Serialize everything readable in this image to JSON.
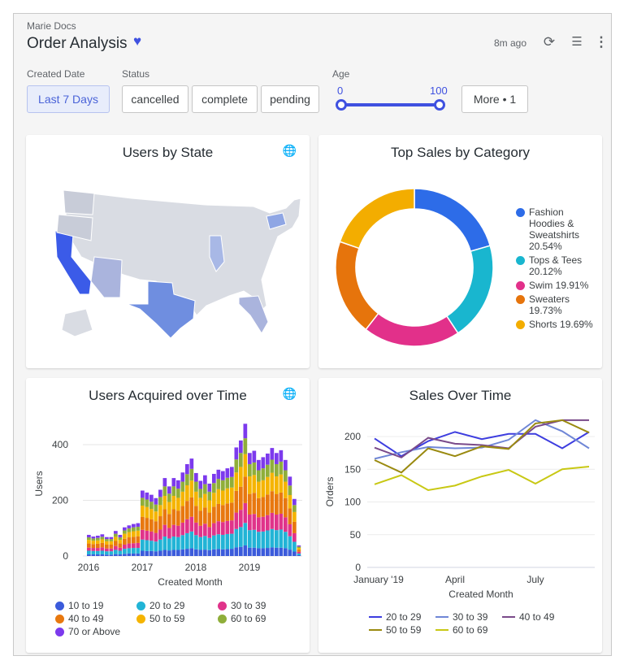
{
  "header": {
    "breadcrumb": "Marie Docs",
    "title": "Order Analysis",
    "updated": "8m ago",
    "favorite_icon": "heart-icon",
    "colors": {
      "accent": "#3f51e0"
    }
  },
  "filters": {
    "created_date": {
      "label": "Created Date",
      "value": "Last 7 Days"
    },
    "status": {
      "label": "Status",
      "options": [
        "cancelled",
        "complete",
        "pending"
      ]
    },
    "age": {
      "label": "Age",
      "min": "0",
      "max": "100"
    },
    "more": "More • 1"
  },
  "cards": {
    "map": {
      "title": "Users by State"
    },
    "donut": {
      "title": "Top Sales by Category"
    },
    "bars": {
      "title": "Users Acquired over Time"
    },
    "lines": {
      "title": "Sales Over Time"
    }
  },
  "chart_data": [
    {
      "type": "pie",
      "title": "Top Sales by Category",
      "donut": true,
      "legend": "right",
      "slices": [
        {
          "label": "Fashion Hoodies & Sweatshirts",
          "value": 20.54,
          "text": "Fashion Hoodies & Sweatshirts 20.54%",
          "color": "#2d6ce8"
        },
        {
          "label": "Tops & Tees",
          "value": 20.12,
          "text": "Tops & Tees 20.12%",
          "color": "#19b6cf"
        },
        {
          "label": "Swim",
          "value": 19.91,
          "text": "Swim 19.91%",
          "color": "#e2308a"
        },
        {
          "label": "Sweaters",
          "value": 19.73,
          "text": "Sweaters 19.73%",
          "color": "#e6740c"
        },
        {
          "label": "Shorts",
          "value": 19.69,
          "text": "Shorts 19.69%",
          "color": "#f3ad00"
        }
      ]
    },
    {
      "type": "bar",
      "stacked": true,
      "title": "Users Acquired over Time",
      "xlabel": "Created Month",
      "ylabel": "Users",
      "ylim": [
        0,
        480
      ],
      "yticks": [
        "0",
        "200",
        "400"
      ],
      "xticks": [
        "2016",
        "2017",
        "2018",
        "2019"
      ],
      "grid": true,
      "legend": "bottom",
      "series": [
        {
          "name": "10 to 19",
          "color": "#3b5bdb",
          "values": [
            6,
            6,
            6,
            6,
            5,
            5,
            7,
            6,
            8,
            9,
            9,
            9,
            19,
            18,
            18,
            17,
            19,
            22,
            20,
            22,
            22,
            24,
            26,
            28,
            24,
            22,
            23,
            21,
            24,
            25,
            24,
            25,
            26,
            31,
            33,
            38,
            30,
            30,
            28,
            28,
            29,
            31,
            30,
            30,
            28,
            23,
            16,
            3
          ]
        },
        {
          "name": "20 to 29",
          "color": "#22b4d6",
          "values": [
            13,
            12,
            12,
            13,
            12,
            12,
            15,
            13,
            18,
            19,
            20,
            20,
            40,
            39,
            37,
            35,
            40,
            48,
            43,
            48,
            46,
            51,
            56,
            60,
            51,
            46,
            49,
            44,
            50,
            53,
            52,
            54,
            54,
            66,
            71,
            81,
            63,
            64,
            59,
            60,
            63,
            66,
            63,
            65,
            59,
            48,
            35,
            6
          ]
        },
        {
          "name": "30 to 39",
          "color": "#e0338a",
          "values": [
            11,
            11,
            11,
            12,
            10,
            10,
            14,
            11,
            15,
            17,
            17,
            18,
            35,
            34,
            33,
            31,
            36,
            42,
            38,
            42,
            41,
            45,
            50,
            53,
            45,
            41,
            44,
            39,
            44,
            47,
            46,
            47,
            48,
            59,
            62,
            71,
            56,
            57,
            52,
            53,
            55,
            58,
            56,
            57,
            52,
            43,
            31,
            6
          ]
        },
        {
          "name": "40 to 49",
          "color": "#e8780f",
          "values": [
            15,
            14,
            15,
            16,
            14,
            14,
            18,
            15,
            21,
            22,
            23,
            24,
            47,
            46,
            44,
            42,
            48,
            56,
            50,
            56,
            54,
            60,
            66,
            70,
            60,
            54,
            58,
            52,
            59,
            62,
            61,
            63,
            64,
            78,
            83,
            95,
            74,
            76,
            69,
            71,
            74,
            78,
            74,
            76,
            69,
            57,
            41,
            8
          ]
        },
        {
          "name": "50 to 59",
          "color": "#f5b400",
          "values": [
            13,
            12,
            12,
            13,
            12,
            12,
            15,
            13,
            18,
            19,
            20,
            20,
            40,
            39,
            37,
            35,
            40,
            48,
            43,
            48,
            46,
            51,
            56,
            60,
            51,
            46,
            49,
            44,
            50,
            53,
            52,
            54,
            54,
            66,
            71,
            81,
            63,
            64,
            59,
            60,
            63,
            66,
            63,
            65,
            59,
            48,
            35,
            6
          ]
        },
        {
          "name": "60 to 69",
          "color": "#8fae3a",
          "values": [
            9,
            8,
            9,
            9,
            8,
            8,
            11,
            9,
            12,
            13,
            14,
            14,
            28,
            27,
            26,
            25,
            29,
            34,
            30,
            34,
            33,
            36,
            40,
            42,
            36,
            32,
            35,
            31,
            35,
            37,
            37,
            38,
            38,
            47,
            50,
            57,
            44,
            45,
            41,
            43,
            44,
            47,
            44,
            46,
            41,
            34,
            25,
            5
          ]
        },
        {
          "name": "70 or Above",
          "color": "#7c3aed",
          "values": [
            9,
            7,
            8,
            9,
            7,
            7,
            10,
            9,
            11,
            11,
            12,
            13,
            26,
            25,
            25,
            23,
            26,
            30,
            26,
            30,
            30,
            33,
            36,
            37,
            31,
            29,
            32,
            29,
            33,
            33,
            33,
            34,
            36,
            43,
            45,
            52,
            40,
            42,
            37,
            40,
            40,
            42,
            40,
            41,
            37,
            32,
            22,
            4
          ]
        }
      ]
    },
    {
      "type": "line",
      "title": "Sales Over Time",
      "xlabel": "Created Month",
      "ylabel": "Orders",
      "ylim": [
        0,
        225
      ],
      "x": [
        "Jan 2019",
        "Feb 2019",
        "Mar 2019",
        "Apr 2019",
        "May 2019",
        "Jun 2019",
        "Jul 2019",
        "Aug 2019",
        "Sep 2019"
      ],
      "xticks": [
        "January '19",
        "April",
        "July"
      ],
      "yticks": [
        "0",
        "50",
        "100",
        "150",
        "200"
      ],
      "grid": true,
      "legend": "bottom",
      "series": [
        {
          "name": "20 to 29",
          "color": "#3d3ddf",
          "values": [
            197,
            170,
            193,
            207,
            196,
            204,
            204,
            182,
            207
          ]
        },
        {
          "name": "30 to 39",
          "color": "#6f86d6",
          "values": [
            166,
            176,
            184,
            182,
            183,
            195,
            225,
            208,
            182
          ]
        },
        {
          "name": "40 to 49",
          "color": "#7a4a8a",
          "values": [
            183,
            168,
            198,
            189,
            187,
            182,
            215,
            225,
            225
          ]
        },
        {
          "name": "50 to 59",
          "color": "#9a8a10",
          "values": [
            164,
            145,
            182,
            170,
            185,
            181,
            220,
            225,
            206
          ]
        },
        {
          "name": "60 to 69",
          "color": "#c8c814",
          "values": [
            127,
            141,
            118,
            125,
            139,
            149,
            128,
            150,
            154
          ]
        }
      ]
    }
  ]
}
